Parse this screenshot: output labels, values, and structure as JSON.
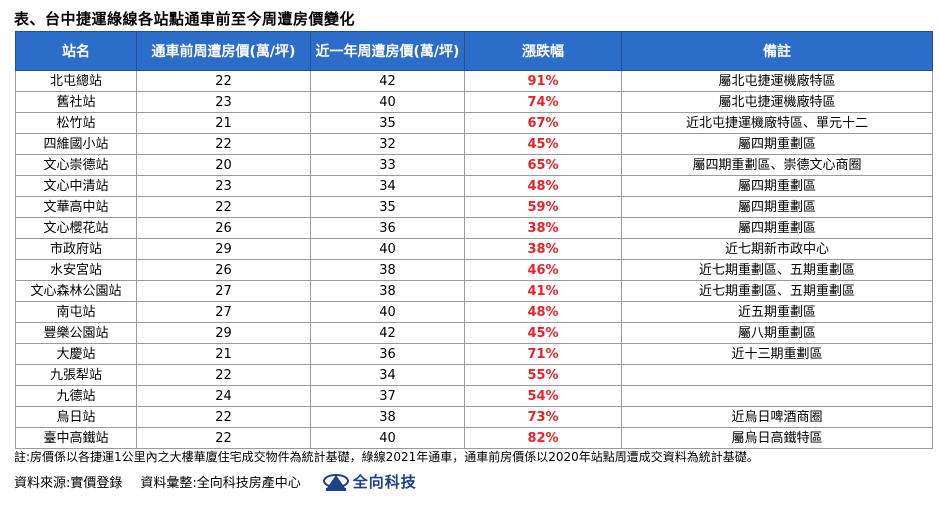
{
  "title": "表、台中捷運綠線各站點通車前至今周遭房價變化",
  "table": {
    "headers": [
      "站名",
      "通車前周遭房價(萬/坪)",
      "近一年周遭房價(萬/坪)",
      "漲跌幅",
      "備註"
    ],
    "rows": [
      {
        "station": "北屯總站",
        "before": "22",
        "recent": "42",
        "change": "91%",
        "note": "屬北屯捷運機廠特區"
      },
      {
        "station": "舊社站",
        "before": "23",
        "recent": "40",
        "change": "74%",
        "note": "屬北屯捷運機廠特區"
      },
      {
        "station": "松竹站",
        "before": "21",
        "recent": "35",
        "change": "67%",
        "note": "近北屯捷運機廠特區、單元十二"
      },
      {
        "station": "四維國小站",
        "before": "22",
        "recent": "32",
        "change": "45%",
        "note": "屬四期重劃區"
      },
      {
        "station": "文心崇德站",
        "before": "20",
        "recent": "33",
        "change": "65%",
        "note": "屬四期重劃區、崇德文心商圈"
      },
      {
        "station": "文心中清站",
        "before": "23",
        "recent": "34",
        "change": "48%",
        "note": "屬四期重劃區"
      },
      {
        "station": "文華高中站",
        "before": "22",
        "recent": "35",
        "change": "59%",
        "note": "屬四期重劃區"
      },
      {
        "station": "文心櫻花站",
        "before": "26",
        "recent": "36",
        "change": "38%",
        "note": "屬四期重劃區"
      },
      {
        "station": "市政府站",
        "before": "29",
        "recent": "40",
        "change": "38%",
        "note": "近七期新市政中心"
      },
      {
        "station": "水安宮站",
        "before": "26",
        "recent": "38",
        "change": "46%",
        "note": "近七期重劃區、五期重劃區"
      },
      {
        "station": "文心森林公園站",
        "before": "27",
        "recent": "38",
        "change": "41%",
        "note": "近七期重劃區、五期重劃區"
      },
      {
        "station": "南屯站",
        "before": "27",
        "recent": "40",
        "change": "48%",
        "note": "近五期重劃區"
      },
      {
        "station": "豐樂公園站",
        "before": "29",
        "recent": "42",
        "change": "45%",
        "note": "屬八期重劃區"
      },
      {
        "station": "大慶站",
        "before": "21",
        "recent": "36",
        "change": "71%",
        "note": "近十三期重劃區"
      },
      {
        "station": "九張犁站",
        "before": "22",
        "recent": "34",
        "change": "55%",
        "note": ""
      },
      {
        "station": "九德站",
        "before": "24",
        "recent": "37",
        "change": "54%",
        "note": ""
      },
      {
        "station": "烏日站",
        "before": "22",
        "recent": "38",
        "change": "73%",
        "note": "近烏日啤酒商圈"
      },
      {
        "station": "臺中高鐵站",
        "before": "22",
        "recent": "40",
        "change": "82%",
        "note": "屬烏日高鐵特區"
      }
    ]
  },
  "note": "註:房價係以各捷運1公里內之大樓華廈住宅成交物件為統計基礎，綠線2021年通車，通車前房價係以2020年站點周遭成交資料為統計基礎。",
  "footer": {
    "source": "資料來源:實價登錄",
    "compiled": "資料彙整:全向科技房產中心",
    "logo_text": "全向科技"
  },
  "colors": {
    "header_bg": "#2b6dc8",
    "pct_text": "#e8232a",
    "logo": "#1c3f8f"
  }
}
